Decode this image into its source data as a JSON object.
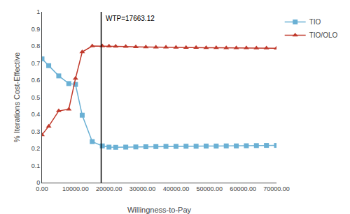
{
  "chart_data": {
    "type": "line",
    "x": [
      0,
      2000,
      5000,
      8000,
      10000,
      12000,
      15000,
      18000,
      20000,
      22000,
      25000,
      28000,
      31000,
      34000,
      37000,
      40000,
      43000,
      46000,
      49000,
      52000,
      55000,
      58000,
      61000,
      64000,
      67000,
      70000
    ],
    "series": [
      {
        "name": "TIO",
        "color": "#6ab0d4",
        "marker": "square",
        "values": [
          0.725,
          0.685,
          0.625,
          0.58,
          0.575,
          0.395,
          0.24,
          0.215,
          0.208,
          0.207,
          0.208,
          0.209,
          0.21,
          0.211,
          0.212,
          0.212,
          0.213,
          0.213,
          0.214,
          0.214,
          0.215,
          0.215,
          0.216,
          0.217,
          0.218,
          0.218
        ]
      },
      {
        "name": "TIO/OLO",
        "color": "#c0392b",
        "marker": "triangle",
        "values": [
          0.28,
          0.33,
          0.42,
          0.43,
          0.61,
          0.765,
          0.8,
          0.8,
          0.799,
          0.798,
          0.797,
          0.795,
          0.794,
          0.793,
          0.793,
          0.792,
          0.791,
          0.791,
          0.79,
          0.79,
          0.789,
          0.789,
          0.789,
          0.788,
          0.788,
          0.787
        ]
      }
    ],
    "xlabel": "Willingness-to-Pay",
    "ylabel": "% Iterations Cost-Effective",
    "xlim": [
      0,
      70000
    ],
    "ylim": [
      0,
      1.0
    ],
    "xticks": [
      {
        "value": 0,
        "label": "0.00"
      },
      {
        "value": 10000,
        "label": "10000.00"
      },
      {
        "value": 20000,
        "label": "20000.00"
      },
      {
        "value": 30000,
        "label": "30000.00"
      },
      {
        "value": 40000,
        "label": "40000.00"
      },
      {
        "value": 50000,
        "label": "50000.00"
      },
      {
        "value": 60000,
        "label": "60000.00"
      },
      {
        "value": 70000,
        "label": "70000.00"
      }
    ],
    "yticks": [
      0,
      0.1,
      0.2,
      0.3,
      0.4,
      0.5,
      0.6,
      0.7,
      0.8,
      0.9,
      1
    ],
    "grid": false,
    "legend": "right",
    "annotations": [
      {
        "x": 17663.12,
        "text": "WTP=17663.12",
        "color": "black"
      }
    ]
  }
}
